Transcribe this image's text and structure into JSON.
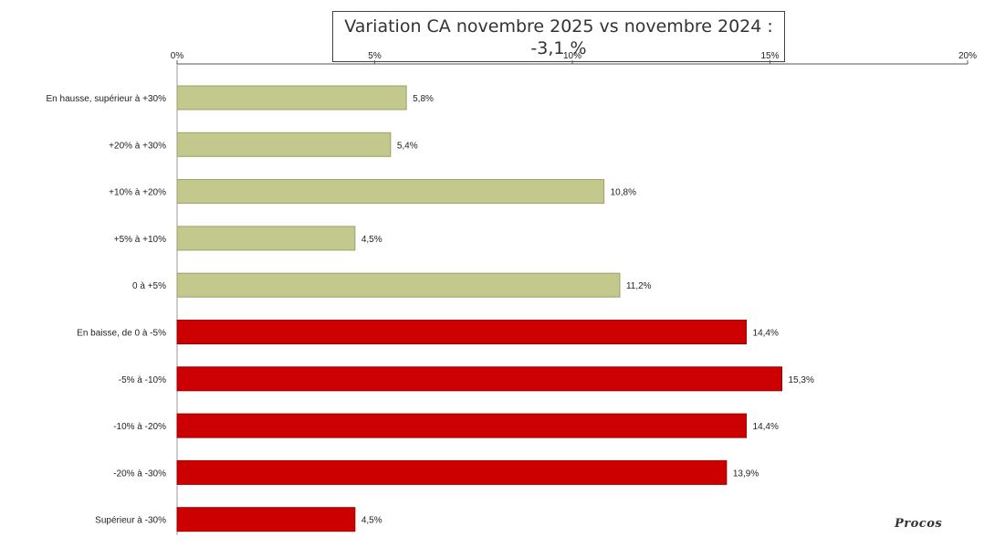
{
  "chart_data": {
    "type": "bar",
    "orientation": "horizontal",
    "title_line1": "Variation CA novembre 2025 vs novembre 2024 :",
    "title_line2": "-3,1 %",
    "x_ticks": [
      "0%",
      "5%",
      "10%",
      "15%",
      "20%"
    ],
    "xlim": [
      0,
      20
    ],
    "categories": [
      "En hausse, supérieur à +30%",
      "+20% à +30%",
      "+10% à +20%",
      "+5% à +10%",
      "0 à +5%",
      "En baisse, de 0 à -5%",
      "-5% à -10%",
      "-10% à -20%",
      "-20% à -30%",
      "Supérieur à -30%"
    ],
    "values": [
      5.8,
      5.4,
      10.8,
      4.5,
      11.2,
      14.4,
      15.3,
      14.4,
      13.9,
      4.5
    ],
    "value_labels": [
      "5,8%",
      "5,4%",
      "10,8%",
      "4,5%",
      "11,2%",
      "14,4%",
      "15,3%",
      "14,4%",
      "13,9%",
      "4,5%"
    ],
    "groups": [
      "up",
      "up",
      "up",
      "up",
      "up",
      "down",
      "down",
      "down",
      "down",
      "down"
    ],
    "colors": {
      "up": "#c3c98d",
      "down": "#cc0000"
    },
    "grid": false,
    "legend": "none"
  },
  "brand": {
    "logo_text": "Procos"
  }
}
